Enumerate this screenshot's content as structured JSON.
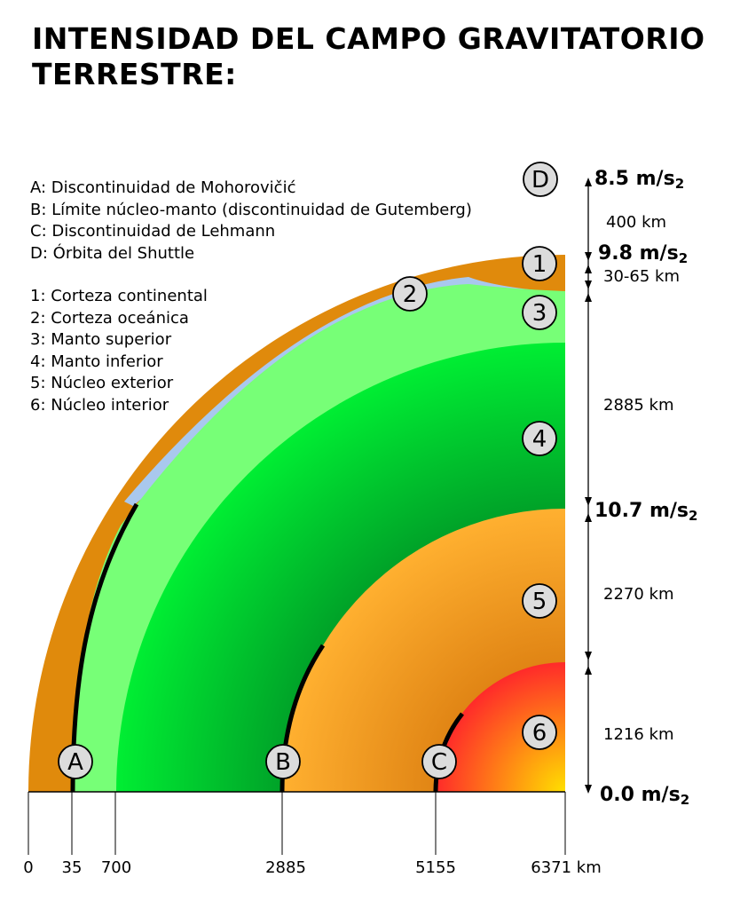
{
  "title": {
    "line1": "INTENSIDAD DEL CAMPO GRAVITATORIO",
    "line2": "TERRESTRE:"
  },
  "legend_discontinuities": [
    {
      "key": "A",
      "text": "A: Discontinuidad de  Mohorovičić"
    },
    {
      "key": "B",
      "text": "B: Límite núcleo-manto (discontinuidad de Gutemberg)"
    },
    {
      "key": "C",
      "text": "C: Discontinuidad de Lehmann"
    },
    {
      "key": "D",
      "text": "D: Órbita del Shuttle"
    }
  ],
  "legend_layers": [
    {
      "key": "1",
      "text": "1: Corteza continental"
    },
    {
      "key": "2",
      "text": "2: Corteza oceánica"
    },
    {
      "key": "3",
      "text": "3: Manto superior"
    },
    {
      "key": "4",
      "text": "4: Manto inferior"
    },
    {
      "key": "5",
      "text": "5: Núcleo exterior"
    },
    {
      "key": "6",
      "text": "6: Núcleo interior"
    }
  ],
  "layer_markers": [
    "1",
    "2",
    "3",
    "4",
    "5",
    "6"
  ],
  "discontinuity_markers": [
    "A",
    "B",
    "C",
    "D"
  ],
  "gravity_values": [
    {
      "value": "8.5 m/s",
      "sub": "2"
    },
    {
      "value": "9.8 m/s",
      "sub": "2"
    },
    {
      "value": "10.7 m/s",
      "sub": "2"
    },
    {
      "value": "0.0 m/s",
      "sub": "2"
    }
  ],
  "thickness_labels": [
    "400 km",
    "30-65 km",
    "2885 km",
    "2270 km",
    "1216 km"
  ],
  "radius_axis": {
    "ticks": [
      "0",
      "35",
      "700",
      "2885",
      "5155",
      "6371 km"
    ]
  },
  "colors": {
    "continental_crust": "#e08a0c",
    "oceanic_crust": "#a9c8ee",
    "upper_mantle": "#77ff77",
    "lower_mantle_light": "#00ee33",
    "lower_mantle_dark": "#00a028",
    "outer_core_light": "#ffb030",
    "outer_core_dark": "#e08414",
    "inner_core_red": "#ff2a2a",
    "inner_core_yellow": "#ffe000",
    "marker_fill": "#dcdcdc"
  }
}
